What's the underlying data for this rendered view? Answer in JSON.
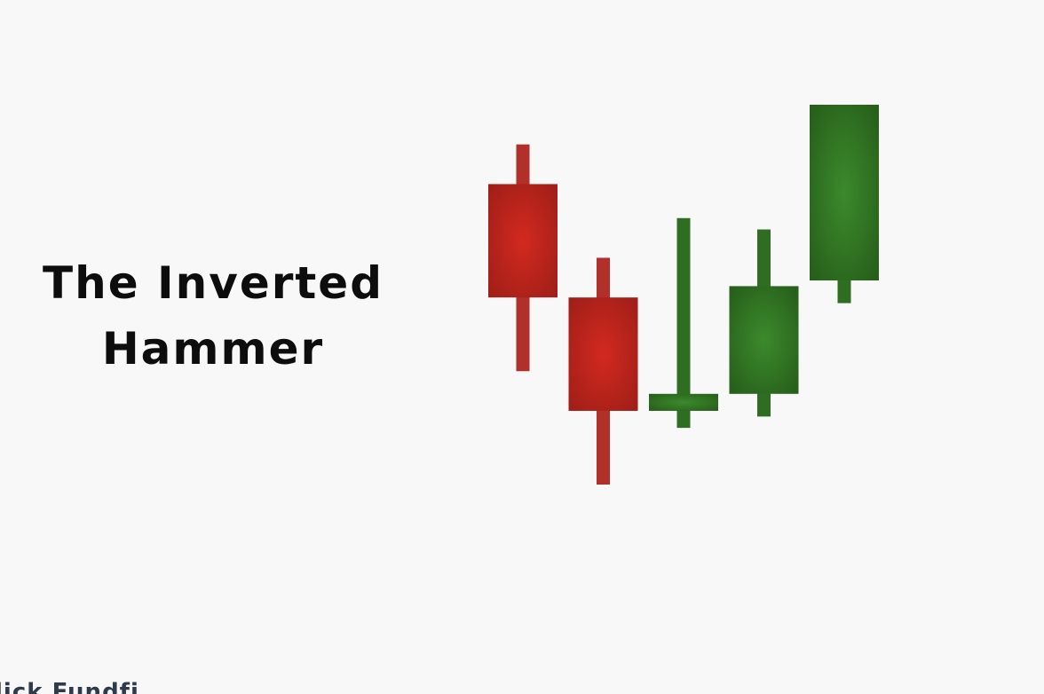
{
  "title": {
    "line1": "The Inverted",
    "line2": "Hammer"
  },
  "caption": "lick Fundfi",
  "chart_data": {
    "type": "candlestick",
    "title": "",
    "colors": {
      "bearish": "#b42a20",
      "bullish": "#2f6e22"
    },
    "candles": [
      {
        "open": 8.6,
        "high": 9.3,
        "low": 5.3,
        "close": 6.6,
        "direction": "bearish"
      },
      {
        "open": 6.6,
        "high": 7.3,
        "low": 3.3,
        "close": 4.6,
        "direction": "bearish"
      },
      {
        "open": 4.6,
        "high": 8.0,
        "low": 4.3,
        "close": 4.9,
        "direction": "bullish"
      },
      {
        "open": 4.9,
        "high": 7.8,
        "low": 4.5,
        "close": 6.8,
        "direction": "bullish"
      },
      {
        "open": 6.9,
        "high": 10.0,
        "low": 6.5,
        "close": 10.0,
        "direction": "bullish"
      }
    ]
  }
}
